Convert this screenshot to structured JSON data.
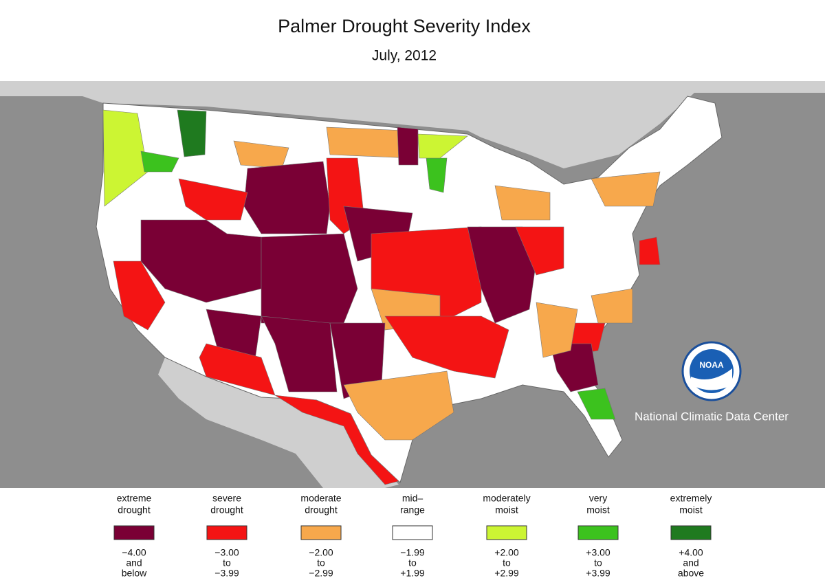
{
  "title": "Palmer Drought Severity Index",
  "subtitle": "July, 2012",
  "credit": "National Climatic Data Center",
  "logo_text": "NOAA",
  "legend": [
    {
      "label": [
        "extreme",
        "drought"
      ],
      "range": [
        "−4.00",
        "and",
        "below"
      ],
      "color": "#7a0035"
    },
    {
      "label": [
        "severe",
        "drought"
      ],
      "range": [
        "−3.00",
        "to",
        "−3.99"
      ],
      "color": "#f41414"
    },
    {
      "label": [
        "moderate",
        "drought"
      ],
      "range": [
        "−2.00",
        "to",
        "−2.99"
      ],
      "color": "#f7a84c"
    },
    {
      "label": [
        "mid–",
        "range"
      ],
      "range": [
        "−1.99",
        "to",
        "+1.99"
      ],
      "color": "#ffffff"
    },
    {
      "label": [
        "moderately",
        "moist"
      ],
      "range": [
        "+2.00",
        "to",
        "+2.99"
      ],
      "color": "#ccf533"
    },
    {
      "label": [
        "very",
        "moist"
      ],
      "range": [
        "+3.00",
        "to",
        "+3.99"
      ],
      "color": "#3cc21e"
    },
    {
      "label": [
        "extremely",
        "moist"
      ],
      "range": [
        "+4.00",
        "and",
        "above"
      ],
      "color": "#1f7a1f"
    }
  ]
}
